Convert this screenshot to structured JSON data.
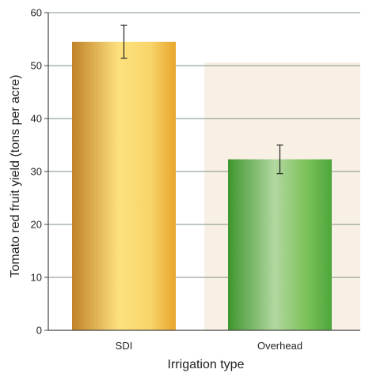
{
  "chart_data": {
    "type": "bar",
    "categories": [
      "SDI",
      "Overhead"
    ],
    "values": [
      54.5,
      32.3
    ],
    "error_bars": [
      3.1,
      2.7
    ],
    "xlabel": "Irrigation type",
    "ylabel": "Tomato red fruit yield (tons per acre)",
    "ylim": [
      0,
      60
    ],
    "yticks": [
      0,
      10,
      20,
      30,
      40,
      50,
      60
    ],
    "grid": true,
    "legend": "none",
    "bar_colors": [
      {
        "dark": "#c1822a",
        "mid": "#f8d56a",
        "light": "#fde17e",
        "edge": "#e8a62c"
      },
      {
        "dark": "#3f952e",
        "mid": "#7dc25b",
        "light": "#b2d8a0",
        "edge": "#4ea63a"
      }
    ],
    "panel_background": "#f8f0e4",
    "grid_color": "#7e8f8a",
    "axis_color": "#444444"
  }
}
